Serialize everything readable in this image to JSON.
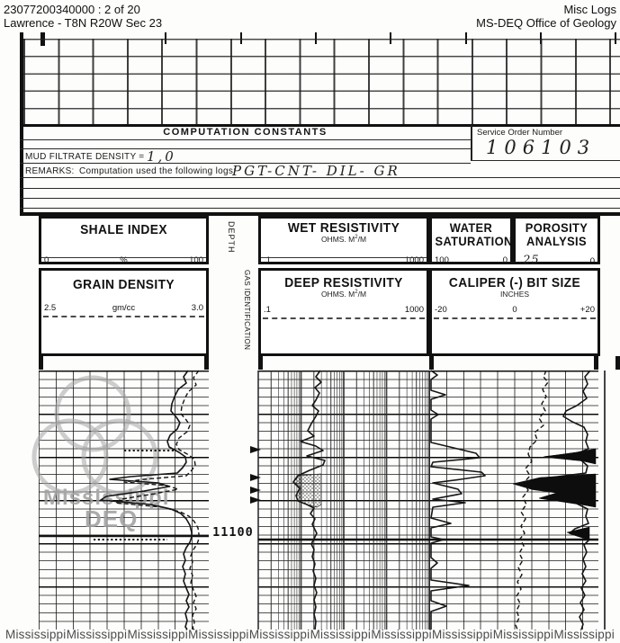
{
  "page_header": {
    "doc_number": "23077200340000 : 2 of 20",
    "location": "Lawrence - T8N R20W Sec 23",
    "collection": "Misc Logs",
    "organization": "MS-DEQ Office of Geology"
  },
  "computation": {
    "title": "COMPUTATION CONSTANTS",
    "service_order_label": "Service Order Number",
    "service_order_value": "106103",
    "mud_filtrate_label": "MUD FILTRATE DENSITY =",
    "mud_filtrate_value": "1,0",
    "remarks_label": "REMARKS:",
    "remarks_caption": "Computation used the following logs:",
    "remarks_value": "PGT-CNT- DIL- GR"
  },
  "track_headers": {
    "depth_label": "DEPTH",
    "gas_id_label": "GAS IDENTIFICATION",
    "shale_index": {
      "title": "SHALE INDEX",
      "scale_left": "0",
      "scale_unit": "%",
      "scale_right": "100"
    },
    "wet_resistivity": {
      "title": "WET RESISTIVITY",
      "unit_pre": "OHMS. M",
      "unit_sup": "2",
      "unit_post": "/M",
      "scale_left": ".1",
      "scale_right": "1000"
    },
    "water_saturation": {
      "title_line1": "WATER",
      "title_line2": "SATURATION",
      "scale_left": "100",
      "scale_right": "0"
    },
    "porosity_analysis": {
      "title_line1": "POROSITY",
      "title_line2": "ANALYSIS",
      "scale_left": ".25",
      "scale_right": "0"
    },
    "grain_density": {
      "title": "GRAIN DENSITY",
      "scale_left": "2.5",
      "scale_unit": "gm/cc",
      "scale_right": "3.0"
    },
    "deep_resistivity": {
      "title": "DEEP RESISTIVITY",
      "unit_pre": "OHMS. M",
      "unit_sup": "2",
      "unit_post": "/M",
      "scale_left": ".1",
      "scale_right": "1000"
    },
    "caliper": {
      "title": "CALIPER (-) BIT SIZE",
      "unit": "INCHES",
      "scale_left": "-20",
      "scale_mid": "0",
      "scale_right": "+20"
    }
  },
  "log_section": {
    "depth_mark": "11100",
    "gas_arrow_depths_y": [
      500,
      531,
      545,
      556
    ]
  },
  "watermark": {
    "logo_line1": "Mississippi",
    "logo_line2": "DEQ",
    "bottom_text": "Mississippi",
    "bottom_count": 10
  },
  "curves": {
    "shale_solid": "209,412 204,419 207,426 198,433 194,441 191,449 190,457 196,464 200,470 197,477 189,484 186,491 188,497 199,503 206,508 207,514 203,520 197,526 145,530 122,533 176,537 188,541 160,546 118,552 112,556 168,561 190,566 201,571 207,577 211,584 213,592 213,597 211,603 207,609 204,616 206,623 203,630 206,638 204,646 207,654 210,661 207,668 210,675 206,682 208,690 206,697 208,700",
    "grain_dashed": "221,412 215,420 218,428 209,436 205,444 202,452 201,460 207,467 211,473 208,480 199,487 196,494 199,500 210,506 216,511 217,517 213,523 207,529 160,533 138,536 186,540 198,544 172,549 135,555 128,559 180,564 200,569 210,574 216,580 220,587 221,594 221,599 219,605 215,611 212,618 214,625 211,632 214,640 212,648 215,656 218,663 215,670 218,677 214,684 216,692 214,699 216,700",
    "shale_dotted_mark1": "138,501 196,501",
    "shale_dotted_mark2": "104,600 186,600",
    "wet_solid": "356,412 351,419 357,425 350,431 355,437 351,445 347,451 354,457 351,463 346,471 342,479 349,485 334,491 351,496 359,501 341,507 361,512 359,517 344,523 331,529 326,536 333,543 329,551 331,557 341,561 349,565 345,571 350,577 347,583 350,589 352,593 349,599 346,605 349,611 347,619 350,627 348,635 351,643 349,651 352,659 349,667 351,675 349,683 351,691 350,700",
    "wet_stipple_area": "357,527 331,529 326,536 333,543 329,551 331,557 341,561 352,564 357,561",
    "water_solid": "479,412 486,417 479,422 479,434 495,439 479,444 479,456 487,461 479,466 479,492 500,497 529,504 533,509 481,514 479,519 535,525 539,529 512,533 481,537 509,544 513,549 481,555 517,559 481,564 479,576 501,582 479,587 479,597 493,600 479,604 479,620 486,626 479,632 479,645 521,651 479,657 479,668 496,674 479,680 479,700",
    "caliper_dashed": "607,412 604,419 609,425 603,433 607,441 602,449 606,457 599,465 604,473 594,481 597,489 589,497 587,505 591,513 584,521 589,529 582,537 587,545 581,553 585,561 579,569 584,577 579,585 583,593 578,599 582,607 577,615 581,623 576,631 580,639 575,647 579,655 574,663 578,671 574,679 577,687 573,695 575,700",
    "porosity_solid": "656,412 650,419 653,427 648,435 652,443 641,451 629,457 626,463 636,469 649,475 653,483 651,491 654,499 642,504 606,508 646,512 653,518 651,526 604,532 572,538 592,544 621,548 601,554 641,560 653,566 651,574 654,582 639,588 633,593 655,600 649,606 652,614 648,622 651,630 647,638 651,646 646,654 650,662 645,670 649,678 644,686 648,694 646,700",
    "porosity_fill_1": "662,499 640,503 604,508 644,512 662,516",
    "porosity_fill_2": "662,527 600,531 570,538 591,544 619,548 599,554 640,560 662,564",
    "porosity_fill_3": "655,586 630,592 655,600"
  },
  "colors": {
    "ink": "#141414",
    "grid_line": "#2b2b2b",
    "watermark_gray": "#9f9f9f",
    "paper": "#fdfdfc"
  }
}
